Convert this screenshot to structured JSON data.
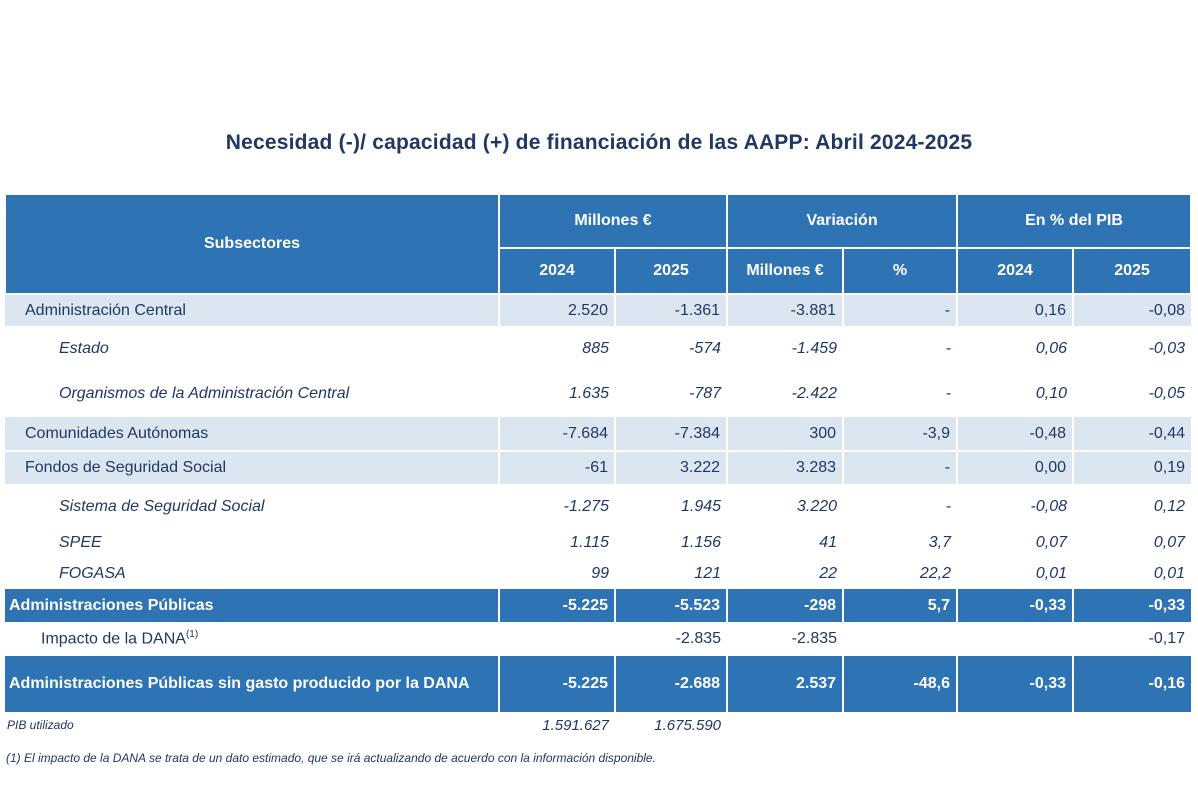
{
  "title": "Necesidad (-)/ capacidad (+) de financiación de las AAPP:   Abril 2024-2025",
  "headers": {
    "subsectores": "Subsectores",
    "millones": "Millones €",
    "variacion": "Variación",
    "pib_pct": "En % del PIB",
    "y2024": "2024",
    "y2025": "2025",
    "var_millones": "Millones €",
    "var_pct": "%",
    "pib2024": "2024",
    "pib2025": "2025"
  },
  "rows": [
    {
      "label": "Administración Central",
      "m2024": "2.520",
      "m2025": "-1.361",
      "var_m": "-3.881",
      "var_p": "-",
      "p2024": "0,16",
      "p2025": "-0,08"
    },
    {
      "label": "Estado",
      "m2024": "885",
      "m2025": "-574",
      "var_m": "-1.459",
      "var_p": "-",
      "p2024": "0,06",
      "p2025": "-0,03"
    },
    {
      "label": "Organismos de la Administración Central",
      "m2024": "1.635",
      "m2025": "-787",
      "var_m": "-2.422",
      "var_p": "-",
      "p2024": "0,10",
      "p2025": "-0,05"
    },
    {
      "label": "Comunidades Autónomas",
      "m2024": "-7.684",
      "m2025": "-7.384",
      "var_m": "300",
      "var_p": "-3,9",
      "p2024": "-0,48",
      "p2025": "-0,44"
    },
    {
      "label": "Fondos de Seguridad Social",
      "m2024": "-61",
      "m2025": "3.222",
      "var_m": "3.283",
      "var_p": "-",
      "p2024": "0,00",
      "p2025": "0,19"
    },
    {
      "label": "Sistema de Seguridad Social",
      "m2024": "-1.275",
      "m2025": "1.945",
      "var_m": "3.220",
      "var_p": "-",
      "p2024": "-0,08",
      "p2025": "0,12"
    },
    {
      "label": "SPEE",
      "m2024": "1.115",
      "m2025": "1.156",
      "var_m": "41",
      "var_p": "3,7",
      "p2024": "0,07",
      "p2025": "0,07"
    },
    {
      "label": "FOGASA",
      "m2024": "99",
      "m2025": "121",
      "var_m": "22",
      "var_p": "22,2",
      "p2024": "0,01",
      "p2025": "0,01"
    },
    {
      "label": "Administraciones Públicas",
      "m2024": "-5.225",
      "m2025": "-5.523",
      "var_m": "-298",
      "var_p": "5,7",
      "p2024": "-0,33",
      "p2025": "-0,33"
    },
    {
      "label": "Impacto de la DANA",
      "sup": "(1)",
      "m2024": "",
      "m2025": "-2.835",
      "var_m": "-2.835",
      "var_p": "",
      "p2024": "",
      "p2025": "-0,17"
    },
    {
      "label": "Administraciones Públicas sin gasto producido por la DANA",
      "m2024": "-5.225",
      "m2025": "-2.688",
      "var_m": "2.537",
      "var_p": "-48,6",
      "p2024": "-0,33",
      "p2025": "-0,16"
    }
  ],
  "pib": {
    "label": "PIB utilizado",
    "v2024": "1.591.627",
    "v2025": "1.675.590"
  },
  "footnote": "(1) El impacto de la DANA se trata de un dato estimado, que se irá actualizando de acuerdo con la información disponible."
}
